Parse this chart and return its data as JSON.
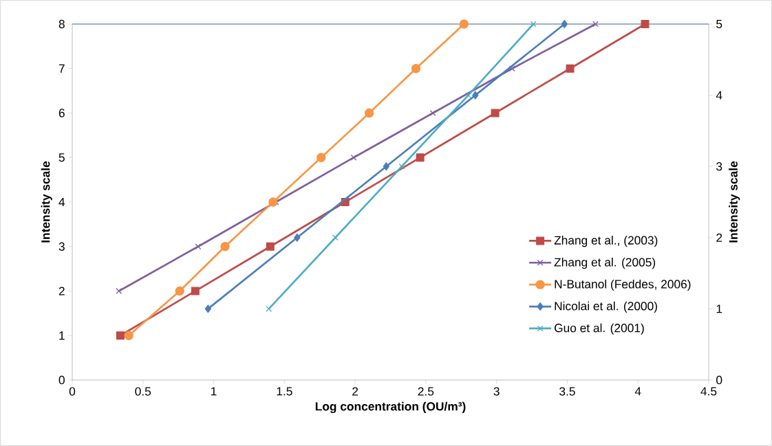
{
  "chart_data": {
    "type": "line",
    "xlabel": "Log concentration (OU/m³)",
    "ylabel": "Intensity  scale",
    "y2label": "Intensity scale",
    "xlim": [
      0,
      4.5
    ],
    "xticks": [
      0,
      0.5,
      1,
      1.5,
      2,
      2.5,
      3,
      3.5,
      4,
      4.5
    ],
    "ylim": [
      0,
      8
    ],
    "yticks": [
      0,
      1,
      2,
      3,
      4,
      5,
      6,
      7,
      8
    ],
    "y2lim": [
      0,
      5
    ],
    "y2ticks": [
      0,
      1,
      2,
      3,
      4,
      5
    ],
    "grid": false,
    "legend": "right",
    "line_style": "solid",
    "series": [
      {
        "name": "Zhang et al., (2003)",
        "color": "#be4b48",
        "marker": "square",
        "x": [
          0.34,
          0.87,
          1.4,
          1.93,
          2.46,
          2.99,
          3.52,
          4.05
        ],
        "values": [
          1,
          2,
          3,
          4,
          5,
          6,
          7,
          8
        ]
      },
      {
        "name": "Zhang et al. (2005)",
        "color": "#7f5fa0",
        "marker": "cross",
        "x": [
          0.33,
          0.89,
          1.44,
          1.99,
          2.55,
          3.11,
          3.7
        ],
        "values": [
          2,
          3,
          4,
          5,
          6,
          7,
          8
        ]
      },
      {
        "name": "N-Butanol (Feddes, 2006)",
        "color": "#f79646",
        "marker": "circle",
        "x": [
          0.4,
          0.76,
          1.08,
          1.42,
          1.76,
          2.1,
          2.43,
          2.77
        ],
        "values": [
          1,
          2,
          3,
          4,
          5,
          6,
          7,
          8
        ]
      },
      {
        "name": "Nicolai et al. (2000)",
        "color": "#4a7ebb",
        "marker": "diamond",
        "axis": "y2",
        "x": [
          0.96,
          1.59,
          2.22,
          2.85,
          3.48
        ],
        "values": [
          1,
          2,
          3,
          4,
          5
        ]
      },
      {
        "name": "Guo et al. (2001)",
        "color": "#4bacc6",
        "marker": "cross",
        "axis": "y2",
        "x": [
          1.39,
          1.86,
          2.33,
          2.8,
          3.26
        ],
        "values": [
          1,
          2,
          3,
          4,
          5
        ]
      }
    ]
  }
}
